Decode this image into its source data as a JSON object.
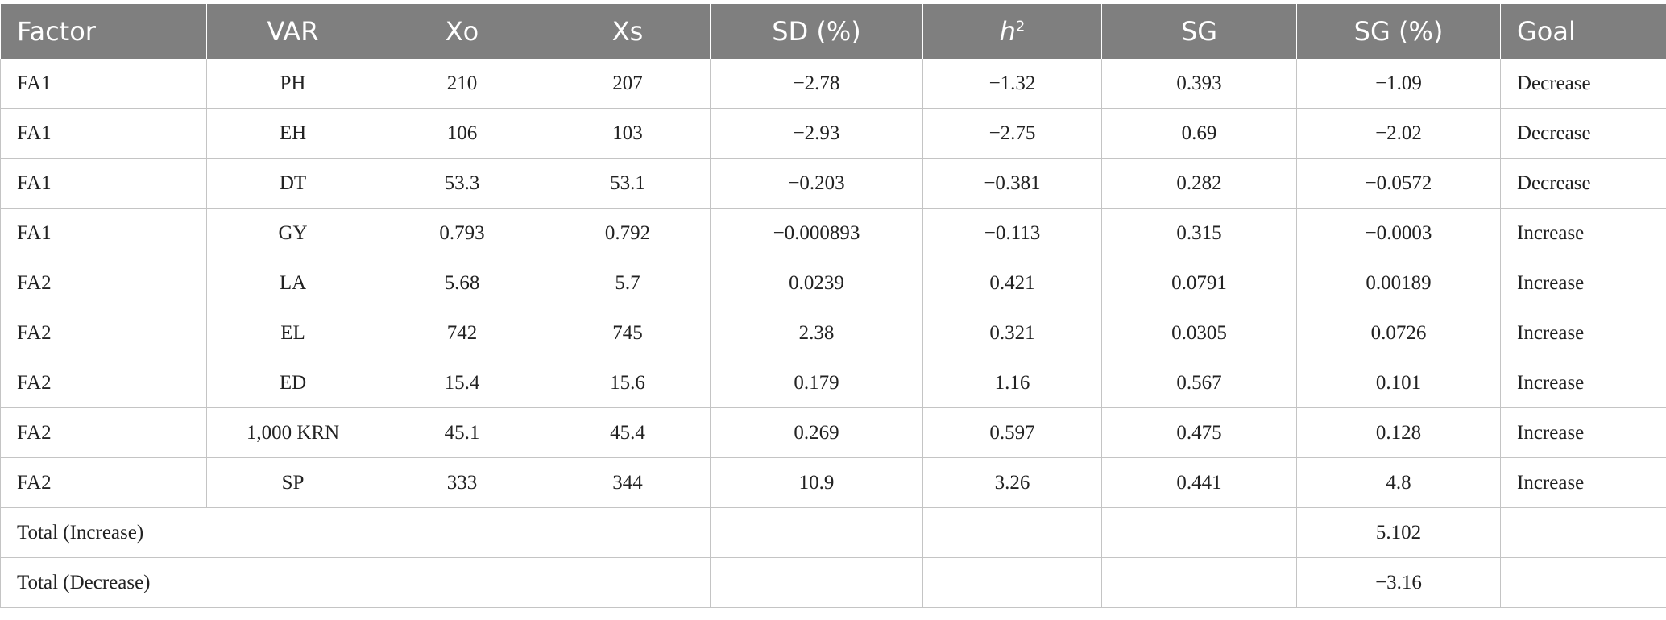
{
  "table": {
    "headers": {
      "factor": "Factor",
      "var": "VAR",
      "xo": "Xo",
      "xs": "Xs",
      "sd": "SD (%)",
      "h2_base": "h",
      "h2_sup": "2",
      "sg": "SG",
      "sgp": "SG (%)",
      "goal": "Goal"
    },
    "rows": [
      {
        "factor": "FA1",
        "var": "PH",
        "xo": "210",
        "xs": "207",
        "sd": "−2.78",
        "h2": "−1.32",
        "sg": "0.393",
        "sgp": "−1.09",
        "goal": "Decrease"
      },
      {
        "factor": "FA1",
        "var": "EH",
        "xo": "106",
        "xs": "103",
        "sd": "−2.93",
        "h2": "−2.75",
        "sg": "0.69",
        "sgp": "−2.02",
        "goal": "Decrease"
      },
      {
        "factor": "FA1",
        "var": "DT",
        "xo": "53.3",
        "xs": "53.1",
        "sd": "−0.203",
        "h2": "−0.381",
        "sg": "0.282",
        "sgp": "−0.0572",
        "goal": "Decrease"
      },
      {
        "factor": "FA1",
        "var": "GY",
        "xo": "0.793",
        "xs": "0.792",
        "sd": "−0.000893",
        "h2": "−0.113",
        "sg": "0.315",
        "sgp": "−0.0003",
        "goal": "Increase"
      },
      {
        "factor": "FA2",
        "var": "LA",
        "xo": "5.68",
        "xs": "5.7",
        "sd": "0.0239",
        "h2": "0.421",
        "sg": "0.0791",
        "sgp": "0.00189",
        "goal": "Increase"
      },
      {
        "factor": "FA2",
        "var": "EL",
        "xo": "742",
        "xs": "745",
        "sd": "2.38",
        "h2": "0.321",
        "sg": "0.0305",
        "sgp": "0.0726",
        "goal": "Increase"
      },
      {
        "factor": "FA2",
        "var": "ED",
        "xo": "15.4",
        "xs": "15.6",
        "sd": "0.179",
        "h2": "1.16",
        "sg": "0.567",
        "sgp": "0.101",
        "goal": "Increase"
      },
      {
        "factor": "FA2",
        "var": "1,000 KRN",
        "xo": "45.1",
        "xs": "45.4",
        "sd": "0.269",
        "h2": "0.597",
        "sg": "0.475",
        "sgp": "0.128",
        "goal": "Increase"
      },
      {
        "factor": "FA2",
        "var": "SP",
        "xo": "333",
        "xs": "344",
        "sd": "10.9",
        "h2": "3.26",
        "sg": "0.441",
        "sgp": "4.8",
        "goal": "Increase"
      }
    ],
    "totals": [
      {
        "label": "Total (Increase)",
        "sgp": "5.102"
      },
      {
        "label": "Total (Decrease)",
        "sgp": "−3.16"
      }
    ]
  },
  "colors": {
    "header_bg": "#7f7f7f",
    "header_text": "#ffffff",
    "border": "#c4c4c4"
  }
}
